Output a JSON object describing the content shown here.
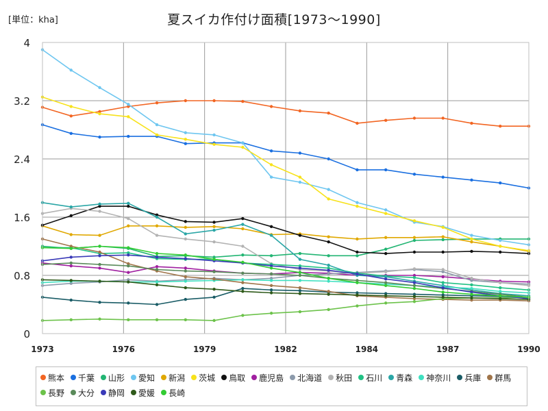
{
  "unit_label": "[単位：kha]",
  "chart_data": {
    "type": "line",
    "title": "夏スイカ作付け面積[1973～1990]",
    "xlabel": "",
    "ylabel": "",
    "xlim": [
      1973,
      1990
    ],
    "ylim": [
      0,
      4
    ],
    "x_ticks": [
      "1973",
      "1976",
      "1979",
      "1982",
      "1984",
      "1987",
      "1990"
    ],
    "y_ticks": [
      "0",
      "0.8",
      "1.6",
      "2.4",
      "3.2",
      "4"
    ],
    "grid": true,
    "legend_position": "bottom",
    "x": [
      1973,
      1974,
      1975,
      1976,
      1977,
      1978,
      1979,
      1980,
      1981,
      1982,
      1983,
      1984,
      1985,
      1986,
      1987,
      1988,
      1989,
      1990
    ],
    "series": [
      {
        "name": "熊本",
        "color": "#f26522",
        "values": [
          3.11,
          2.99,
          3.05,
          3.12,
          3.17,
          3.2,
          3.2,
          3.19,
          3.12,
          3.06,
          3.03,
          2.89,
          2.93,
          2.96,
          2.96,
          2.89,
          2.85,
          2.85
        ]
      },
      {
        "name": "千葉",
        "color": "#1a6fe0",
        "values": [
          2.87,
          2.75,
          2.7,
          2.71,
          2.71,
          2.61,
          2.62,
          2.62,
          2.51,
          2.48,
          2.4,
          2.25,
          2.25,
          2.19,
          2.15,
          2.11,
          2.07,
          2.0
        ]
      },
      {
        "name": "山形",
        "color": "#22b573",
        "values": [
          1.2,
          1.17,
          1.2,
          1.17,
          1.06,
          1.07,
          1.05,
          1.08,
          1.07,
          1.1,
          1.07,
          1.07,
          1.16,
          1.28,
          1.29,
          1.3,
          1.3,
          1.3
        ]
      },
      {
        "name": "愛知",
        "color": "#6ec6f0",
        "values": [
          3.9,
          3.62,
          3.38,
          3.15,
          2.87,
          2.76,
          2.73,
          2.62,
          2.15,
          2.08,
          1.98,
          1.8,
          1.7,
          1.53,
          1.47,
          1.35,
          1.28,
          1.22
        ]
      },
      {
        "name": "新潟",
        "color": "#e0a800",
        "values": [
          1.48,
          1.36,
          1.35,
          1.48,
          1.48,
          1.46,
          1.47,
          1.44,
          1.36,
          1.37,
          1.33,
          1.3,
          1.32,
          1.32,
          1.33,
          1.26,
          1.2,
          1.13
        ]
      },
      {
        "name": "茨城",
        "color": "#f7e21b",
        "values": [
          3.25,
          3.12,
          3.02,
          2.98,
          2.73,
          2.67,
          2.6,
          2.56,
          2.32,
          2.15,
          1.85,
          1.75,
          1.65,
          1.55,
          1.46,
          1.3,
          1.2,
          1.14
        ]
      },
      {
        "name": "鳥取",
        "color": "#111111",
        "values": [
          1.49,
          1.62,
          1.75,
          1.75,
          1.63,
          1.54,
          1.53,
          1.58,
          1.47,
          1.35,
          1.26,
          1.12,
          1.1,
          1.12,
          1.12,
          1.13,
          1.12,
          1.1
        ]
      },
      {
        "name": "鹿児島",
        "color": "#a020a0",
        "values": [
          0.97,
          0.93,
          0.9,
          0.84,
          0.92,
          0.9,
          0.86,
          0.83,
          0.82,
          0.84,
          0.83,
          0.8,
          0.8,
          0.8,
          0.78,
          0.75,
          0.72,
          0.71
        ]
      },
      {
        "name": "北海道",
        "color": "#8c9aab",
        "values": [
          0.66,
          0.69,
          0.71,
          0.74,
          0.72,
          0.74,
          0.76,
          0.74,
          0.76,
          0.8,
          0.82,
          0.84,
          0.86,
          0.88,
          0.85,
          0.73,
          0.7,
          0.68
        ]
      },
      {
        "name": "秋田",
        "color": "#b3b3b3",
        "values": [
          1.65,
          1.72,
          1.68,
          1.58,
          1.35,
          1.3,
          1.26,
          1.2,
          0.96,
          0.88,
          0.86,
          0.83,
          0.85,
          0.89,
          0.88,
          0.76,
          0.7,
          0.66
        ]
      },
      {
        "name": "石川",
        "color": "#21c184",
        "values": [
          1.18,
          1.18,
          1.1,
          1.11,
          1.03,
          1.02,
          1.02,
          0.97,
          0.95,
          0.93,
          0.9,
          0.83,
          0.79,
          0.77,
          0.7,
          0.67,
          0.63,
          0.6
        ]
      },
      {
        "name": "青森",
        "color": "#2aa6a6",
        "values": [
          1.8,
          1.74,
          1.78,
          1.79,
          1.6,
          1.37,
          1.42,
          1.5,
          1.35,
          1.02,
          0.94,
          0.8,
          0.78,
          0.72,
          0.66,
          0.6,
          0.55,
          0.52
        ]
      },
      {
        "name": "神奈川",
        "color": "#3fe0c0",
        "values": [
          0.7,
          0.72,
          0.72,
          0.71,
          0.71,
          0.72,
          0.73,
          0.74,
          0.73,
          0.73,
          0.72,
          0.7,
          0.68,
          0.66,
          0.64,
          0.62,
          0.58,
          0.56
        ]
      },
      {
        "name": "兵庫",
        "color": "#1a5c66",
        "values": [
          0.5,
          0.46,
          0.43,
          0.42,
          0.4,
          0.47,
          0.5,
          0.62,
          0.6,
          0.59,
          0.57,
          0.56,
          0.55,
          0.54,
          0.53,
          0.52,
          0.51,
          0.5
        ]
      },
      {
        "name": "群馬",
        "color": "#a0754a",
        "values": [
          1.3,
          1.2,
          1.12,
          0.96,
          0.86,
          0.78,
          0.75,
          0.7,
          0.66,
          0.63,
          0.58,
          0.52,
          0.5,
          0.48,
          0.47,
          0.46,
          0.46,
          0.45
        ]
      },
      {
        "name": "長野",
        "color": "#6cc24a",
        "values": [
          0.18,
          0.19,
          0.2,
          0.19,
          0.19,
          0.19,
          0.18,
          0.25,
          0.28,
          0.3,
          0.33,
          0.38,
          0.42,
          0.44,
          0.48,
          0.49,
          0.49,
          0.5
        ]
      },
      {
        "name": "大分",
        "color": "#5a8a5a",
        "values": [
          0.95,
          0.97,
          0.95,
          0.93,
          0.88,
          0.86,
          0.85,
          0.83,
          0.82,
          0.8,
          0.76,
          0.73,
          0.7,
          0.66,
          0.62,
          0.58,
          0.54,
          0.5
        ]
      },
      {
        "name": "静岡",
        "color": "#3a3ab8",
        "values": [
          1.0,
          1.05,
          1.07,
          1.08,
          1.05,
          1.03,
          1.0,
          0.97,
          0.93,
          0.9,
          0.87,
          0.82,
          0.75,
          0.7,
          0.63,
          0.57,
          0.52,
          0.48
        ]
      },
      {
        "name": "愛媛",
        "color": "#2f5a1a",
        "values": [
          0.74,
          0.73,
          0.72,
          0.71,
          0.67,
          0.63,
          0.61,
          0.58,
          0.56,
          0.55,
          0.54,
          0.53,
          0.52,
          0.51,
          0.5,
          0.49,
          0.48,
          0.47
        ]
      },
      {
        "name": "長崎",
        "color": "#33cc33",
        "values": [
          1.18,
          1.17,
          1.2,
          1.18,
          1.1,
          1.08,
          1.02,
          0.98,
          0.9,
          0.84,
          0.76,
          0.7,
          0.66,
          0.62,
          0.57,
          0.54,
          0.52,
          0.5
        ]
      }
    ]
  }
}
